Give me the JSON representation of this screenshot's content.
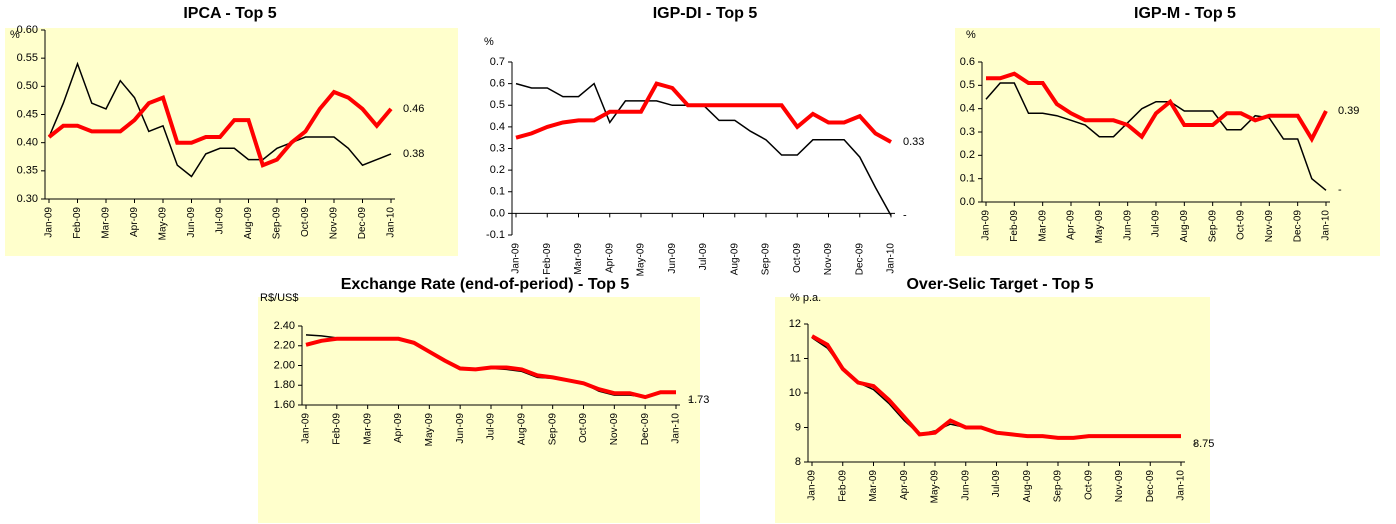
{
  "chart_data": [
    {
      "type": "line",
      "title": "IPCA - Top 5",
      "y_label": "%",
      "background": "#ffffcc",
      "categories": [
        "Jan-09",
        null,
        "Feb-09",
        null,
        "Mar-09",
        null,
        "Apr-09",
        null,
        "May-09",
        null,
        "Jun-09",
        null,
        "Jul-09",
        null,
        "Aug-09",
        null,
        "Sep-09",
        null,
        "Oct-09",
        null,
        "Nov-09",
        null,
        "Dec-09",
        null,
        "Jan-10"
      ],
      "ylim": [
        0.3,
        0.6
      ],
      "yticks": [
        {
          "value": 0.3,
          "label": "0.30"
        },
        0.35,
        {
          "value": 0.4,
          "label": "0.40"
        },
        0.45,
        {
          "value": 0.5,
          "label": "0.50"
        },
        0.55,
        {
          "value": 0.6,
          "label": "0.60"
        }
      ],
      "series": [
        {
          "color": "#000000",
          "end_label": "0.38",
          "values": [
            0.41,
            0.47,
            0.54,
            0.47,
            0.46,
            0.51,
            0.48,
            0.42,
            0.43,
            0.36,
            0.34,
            0.38,
            0.39,
            0.39,
            0.37,
            0.37,
            0.39,
            0.4,
            0.41,
            0.41,
            0.41,
            0.39,
            0.36,
            0.37,
            0.38
          ]
        },
        {
          "color": "#ff0000",
          "end_label": "0.46",
          "values": [
            0.41,
            0.43,
            0.43,
            0.42,
            0.42,
            0.42,
            0.44,
            0.47,
            0.48,
            0.4,
            0.4,
            0.41,
            0.41,
            0.44,
            0.44,
            0.36,
            0.37,
            0.4,
            0.42,
            0.46,
            0.49,
            0.48,
            0.46,
            0.43,
            0.46
          ]
        }
      ]
    },
    {
      "type": "line",
      "title": "IGP-DI - Top 5",
      "y_label": "%",
      "background": "#ffffff",
      "categories": [
        "Jan-09",
        null,
        "Feb-09",
        null,
        "Mar-09",
        null,
        "Apr-09",
        null,
        "May-09",
        null,
        "Jun-09",
        null,
        "Jul-09",
        null,
        "Aug-09",
        null,
        "Sep-09",
        null,
        "Oct-09",
        null,
        "Nov-09",
        null,
        "Dec-09",
        null,
        "Jan-10"
      ],
      "ylim": [
        -0.1,
        0.7
      ],
      "yticks": [
        -0.1,
        {
          "value": 0,
          "label": "0.0"
        },
        0.1,
        0.2,
        0.3,
        0.4,
        0.5,
        0.6,
        0.7
      ],
      "series": [
        {
          "color": "#000000",
          "end_label": "-",
          "values": [
            0.6,
            0.58,
            0.58,
            0.54,
            0.54,
            0.6,
            0.42,
            0.52,
            0.52,
            0.52,
            0.5,
            0.5,
            0.5,
            0.43,
            0.43,
            0.38,
            0.34,
            0.27,
            0.27,
            0.34,
            0.34,
            0.34,
            0.26,
            0.12,
            -0.01
          ]
        },
        {
          "color": "#ff0000",
          "end_label": "0.33",
          "values": [
            0.35,
            0.37,
            0.4,
            0.42,
            0.43,
            0.43,
            0.47,
            0.47,
            0.47,
            0.6,
            0.58,
            0.5,
            0.5,
            0.5,
            0.5,
            0.5,
            0.5,
            0.5,
            0.4,
            0.46,
            0.42,
            0.42,
            0.45,
            0.37,
            0.33
          ]
        }
      ]
    },
    {
      "type": "line",
      "title": "IGP-M - Top 5",
      "y_label": "%",
      "background": "#ffffcc",
      "categories": [
        "Jan-09",
        null,
        "Feb-09",
        null,
        "Mar-09",
        null,
        "Apr-09",
        null,
        "May-09",
        null,
        "Jun-09",
        null,
        "Jul-09",
        null,
        "Aug-09",
        null,
        "Sep-09",
        null,
        "Oct-09",
        null,
        "Nov-09",
        null,
        "Dec-09",
        null,
        "Jan-10"
      ],
      "ylim": [
        0,
        0.6
      ],
      "yticks": [
        {
          "value": 0,
          "label": "0.0"
        },
        0.1,
        0.2,
        0.3,
        0.4,
        0.5,
        0.6
      ],
      "series": [
        {
          "color": "#000000",
          "end_label": "-",
          "values": [
            0.44,
            0.51,
            0.51,
            0.38,
            0.38,
            0.37,
            0.35,
            0.33,
            0.28,
            0.28,
            0.34,
            0.4,
            0.43,
            0.43,
            0.39,
            0.39,
            0.39,
            0.31,
            0.31,
            0.37,
            0.36,
            0.27,
            0.27,
            0.1,
            0.05
          ]
        },
        {
          "color": "#ff0000",
          "end_label": "0.39",
          "values": [
            0.53,
            0.53,
            0.55,
            0.51,
            0.51,
            0.42,
            0.38,
            0.35,
            0.35,
            0.35,
            0.33,
            0.28,
            0.38,
            0.43,
            0.33,
            0.33,
            0.33,
            0.38,
            0.38,
            0.35,
            0.37,
            0.37,
            0.37,
            0.27,
            0.39
          ]
        }
      ]
    },
    {
      "type": "line",
      "title": "Exchange Rate (end-of-period) - Top 5",
      "y_label": "R$/US$",
      "background": "#ffffcc",
      "categories": [
        "Jan-09",
        null,
        "Feb-09",
        null,
        "Mar-09",
        null,
        "Apr-09",
        null,
        "May-09",
        null,
        "Jun-09",
        null,
        "Jul-09",
        null,
        "Aug-09",
        null,
        "Sep-09",
        null,
        "Oct-09",
        null,
        "Nov-09",
        null,
        "Dec-09",
        null,
        "Jan-10"
      ],
      "ylim": [
        1.6,
        2.4
      ],
      "yticks": [
        {
          "value": 1.6,
          "label": "1.60"
        },
        {
          "value": 1.8,
          "label": "1.80"
        },
        {
          "value": 2,
          "label": "2.00"
        },
        {
          "value": 2.2,
          "label": "2.20"
        },
        {
          "value": 2.4,
          "label": "2.40"
        }
      ],
      "series": [
        {
          "color": "#000000",
          "end_label": "-",
          "values": [
            2.31,
            2.3,
            2.28,
            2.27,
            2.27,
            2.27,
            2.27,
            2.22,
            2.14,
            2.04,
            1.98,
            1.97,
            1.97,
            1.96,
            1.94,
            1.88,
            1.87,
            1.85,
            1.82,
            1.74,
            1.7,
            1.7,
            1.68,
            1.73,
            1.73
          ]
        },
        {
          "color": "#ff0000",
          "end_label": "1.73",
          "values": [
            2.21,
            2.25,
            2.27,
            2.27,
            2.27,
            2.27,
            2.27,
            2.23,
            2.14,
            2.05,
            1.97,
            1.96,
            1.98,
            1.98,
            1.96,
            1.9,
            1.88,
            1.85,
            1.82,
            1.76,
            1.72,
            1.72,
            1.68,
            1.73,
            1.73
          ]
        }
      ]
    },
    {
      "type": "line",
      "title": "Over-Selic Target - Top 5",
      "y_label": "% p.a.",
      "background": "#ffffcc",
      "categories": [
        "Jan-09",
        null,
        "Feb-09",
        null,
        "Mar-09",
        null,
        "Apr-09",
        null,
        "May-09",
        null,
        "Jun-09",
        null,
        "Jul-09",
        null,
        "Aug-09",
        null,
        "Sep-09",
        null,
        "Oct-09",
        null,
        "Nov-09",
        null,
        "Dec-09",
        null,
        "Jan-10"
      ],
      "ylim": [
        8,
        12
      ],
      "yticks": [
        8,
        9,
        10,
        11,
        12
      ],
      "series": [
        {
          "color": "#000000",
          "end_label": "-",
          "values": [
            11.6,
            11.3,
            10.7,
            10.3,
            10.1,
            9.7,
            9.2,
            8.8,
            8.9,
            9.1,
            9,
            9,
            8.85,
            8.8,
            8.75,
            8.75,
            8.7,
            8.7,
            8.75,
            8.75,
            8.75,
            8.75,
            8.75,
            8.75,
            8.75
          ]
        },
        {
          "color": "#ff0000",
          "end_label": "8.75",
          "values": [
            11.65,
            11.4,
            10.7,
            10.3,
            10.2,
            9.8,
            9.3,
            8.8,
            8.85,
            9.2,
            9,
            9,
            8.85,
            8.8,
            8.75,
            8.75,
            8.7,
            8.7,
            8.75,
            8.75,
            8.75,
            8.75,
            8.75,
            8.75,
            8.75
          ]
        }
      ]
    }
  ]
}
